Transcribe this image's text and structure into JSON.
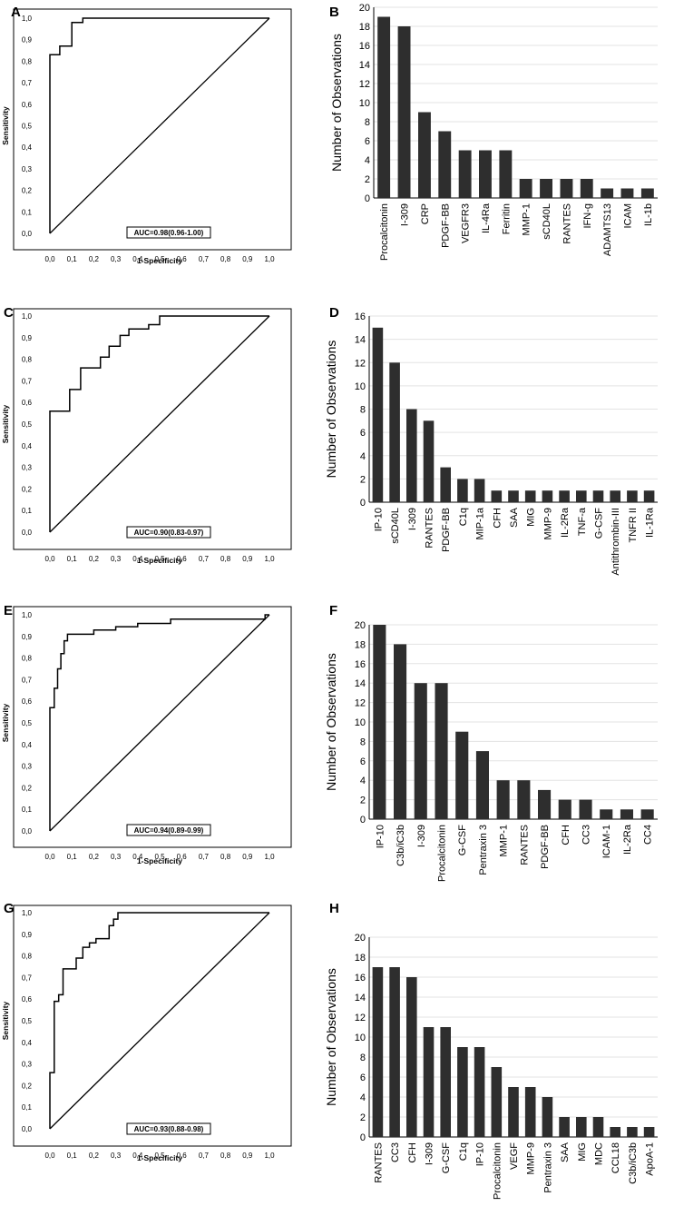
{
  "chart_data": [
    {
      "panel": "A",
      "type": "line",
      "title": "",
      "xlabel": "1-Specificity",
      "ylabel": "Sensitivity",
      "xlim": [
        0,
        1
      ],
      "ylim": [
        0,
        1
      ],
      "ticks": [
        "0,0",
        "0,1",
        "0,2",
        "0,3",
        "0,4",
        "0,5",
        "0,6",
        "0,7",
        "0,8",
        "0,9",
        "1,0"
      ],
      "auc_label": "AUC=0.98(0.96-1.00)",
      "curve": [
        [
          0,
          0
        ],
        [
          0,
          0.83
        ],
        [
          0.045,
          0.83
        ],
        [
          0.045,
          0.87
        ],
        [
          0.1,
          0.87
        ],
        [
          0.1,
          0.98
        ],
        [
          0.15,
          0.98
        ],
        [
          0.15,
          1.0
        ],
        [
          1.0,
          1.0
        ]
      ],
      "diagonal": [
        [
          0,
          0
        ],
        [
          1,
          1
        ]
      ]
    },
    {
      "panel": "B",
      "type": "bar",
      "title": "",
      "xlabel": "",
      "ylabel": "Number of Observations",
      "ylim": [
        0,
        20
      ],
      "yticks": [
        0,
        2,
        4,
        6,
        8,
        10,
        12,
        14,
        16,
        18,
        20
      ],
      "categories": [
        "Procalcitonin",
        "I-309",
        "CRP",
        "PDGF-BB",
        "VEGFR3",
        "IL-4Ra",
        "Ferritin",
        "MMP-1",
        "sCD40L",
        "RANTES",
        "IFN-g",
        "ADAMTS13",
        "ICAM",
        "IL-1b"
      ],
      "values": [
        19,
        18,
        9,
        7,
        5,
        5,
        5,
        2,
        2,
        2,
        2,
        1,
        1,
        1
      ]
    },
    {
      "panel": "C",
      "type": "line",
      "title": "",
      "xlabel": "1-Specificity",
      "ylabel": "Sensitivity",
      "xlim": [
        0,
        1
      ],
      "ylim": [
        0,
        1
      ],
      "ticks": [
        "0,0",
        "0,1",
        "0,2",
        "0,3",
        "0,4",
        "0,5",
        "0,6",
        "0,7",
        "0,8",
        "0,9",
        "1,0"
      ],
      "auc_label": "AUC=0.90(0.83-0.97)",
      "curve": [
        [
          0,
          0
        ],
        [
          0,
          0.56
        ],
        [
          0.09,
          0.56
        ],
        [
          0.09,
          0.66
        ],
        [
          0.14,
          0.66
        ],
        [
          0.14,
          0.76
        ],
        [
          0.23,
          0.76
        ],
        [
          0.23,
          0.81
        ],
        [
          0.27,
          0.81
        ],
        [
          0.27,
          0.86
        ],
        [
          0.32,
          0.86
        ],
        [
          0.32,
          0.91
        ],
        [
          0.36,
          0.91
        ],
        [
          0.36,
          0.94
        ],
        [
          0.45,
          0.94
        ],
        [
          0.45,
          0.96
        ],
        [
          0.5,
          0.96
        ],
        [
          0.5,
          1.0
        ],
        [
          1.0,
          1.0
        ]
      ],
      "diagonal": [
        [
          0,
          0
        ],
        [
          1,
          1
        ]
      ]
    },
    {
      "panel": "D",
      "type": "bar",
      "title": "",
      "xlabel": "",
      "ylabel": "Number of Observations",
      "ylim": [
        0,
        16
      ],
      "yticks": [
        0,
        2,
        4,
        6,
        8,
        10,
        12,
        14,
        16
      ],
      "categories": [
        "IP-10",
        "sCD40L",
        "I-309",
        "RANTES",
        "PDGF-BB",
        "C1q",
        "MIP-1a",
        "CFH",
        "SAA",
        "MIG",
        "MMP-9",
        "IL-2Ra",
        "TNF-a",
        "G-CSF",
        "Antithrombin-III",
        "TNFR II",
        "IL-1Ra"
      ],
      "values": [
        15,
        12,
        8,
        7,
        3,
        2,
        2,
        1,
        1,
        1,
        1,
        1,
        1,
        1,
        1,
        1,
        1
      ]
    },
    {
      "panel": "E",
      "type": "line",
      "title": "",
      "xlabel": "1-Specificity",
      "ylabel": "Sensitivity",
      "xlim": [
        0,
        1
      ],
      "ylim": [
        0,
        1
      ],
      "ticks": [
        "0,0",
        "0,1",
        "0,2",
        "0,3",
        "0,4",
        "0,5",
        "0,6",
        "0,7",
        "0,8",
        "0,9",
        "1,0"
      ],
      "auc_label": "AUC=0.94(0.89-0.99)",
      "curve": [
        [
          0,
          0
        ],
        [
          0,
          0.57
        ],
        [
          0.02,
          0.57
        ],
        [
          0.02,
          0.66
        ],
        [
          0.035,
          0.66
        ],
        [
          0.035,
          0.75
        ],
        [
          0.05,
          0.75
        ],
        [
          0.05,
          0.82
        ],
        [
          0.065,
          0.82
        ],
        [
          0.065,
          0.88
        ],
        [
          0.08,
          0.88
        ],
        [
          0.08,
          0.91
        ],
        [
          0.2,
          0.91
        ],
        [
          0.2,
          0.93
        ],
        [
          0.3,
          0.93
        ],
        [
          0.3,
          0.945
        ],
        [
          0.4,
          0.945
        ],
        [
          0.4,
          0.96
        ],
        [
          0.55,
          0.96
        ],
        [
          0.55,
          0.98
        ],
        [
          0.98,
          0.98
        ],
        [
          0.98,
          1.0
        ],
        [
          1.0,
          1.0
        ]
      ],
      "diagonal": [
        [
          0,
          0
        ],
        [
          1,
          1
        ]
      ]
    },
    {
      "panel": "F",
      "type": "bar",
      "title": "",
      "xlabel": "",
      "ylabel": "Number of Observations",
      "ylim": [
        0,
        20
      ],
      "yticks": [
        0,
        2,
        4,
        6,
        8,
        10,
        12,
        14,
        16,
        18,
        20
      ],
      "categories": [
        "IP-10",
        "C3b/iC3b",
        "I-309",
        "Procalcitonin",
        "G-CSF",
        "Pentraxin 3",
        "MMP-1",
        "RANTES",
        "PDGF-BB",
        "CFH",
        "CC3",
        "ICAM-1",
        "IL-2Ra",
        "CC4"
      ],
      "values": [
        20,
        18,
        14,
        14,
        9,
        7,
        4,
        4,
        3,
        2,
        2,
        1,
        1,
        1
      ]
    },
    {
      "panel": "G",
      "type": "line",
      "title": "",
      "xlabel": "1-Specificity",
      "ylabel": "Sensitivity",
      "xlim": [
        0,
        1
      ],
      "ylim": [
        0,
        1
      ],
      "ticks": [
        "0,0",
        "0,1",
        "0,2",
        "0,3",
        "0,4",
        "0,5",
        "0,6",
        "0,7",
        "0,8",
        "0,9",
        "1,0"
      ],
      "auc_label": "AUC=0.93(0.88-0.98)",
      "curve": [
        [
          0,
          0
        ],
        [
          0,
          0.26
        ],
        [
          0.02,
          0.26
        ],
        [
          0.02,
          0.59
        ],
        [
          0.04,
          0.59
        ],
        [
          0.04,
          0.62
        ],
        [
          0.06,
          0.62
        ],
        [
          0.06,
          0.74
        ],
        [
          0.12,
          0.74
        ],
        [
          0.12,
          0.79
        ],
        [
          0.15,
          0.79
        ],
        [
          0.15,
          0.84
        ],
        [
          0.18,
          0.84
        ],
        [
          0.18,
          0.86
        ],
        [
          0.21,
          0.86
        ],
        [
          0.21,
          0.88
        ],
        [
          0.27,
          0.88
        ],
        [
          0.27,
          0.94
        ],
        [
          0.29,
          0.94
        ],
        [
          0.29,
          0.97
        ],
        [
          0.31,
          0.97
        ],
        [
          0.31,
          1.0
        ],
        [
          1.0,
          1.0
        ]
      ],
      "diagonal": [
        [
          0,
          0
        ],
        [
          1,
          1
        ]
      ]
    },
    {
      "panel": "H",
      "type": "bar",
      "title": "",
      "xlabel": "",
      "ylabel": "Number of Observations",
      "ylim": [
        0,
        20
      ],
      "yticks": [
        0,
        2,
        4,
        6,
        8,
        10,
        12,
        14,
        16,
        18,
        20
      ],
      "categories": [
        "RANTES",
        "CC3",
        "CFH",
        "I-309",
        "G-CSF",
        "C1q",
        "IP-10",
        "Procalcitonin",
        "VEGF",
        "MMP-9",
        "Pentraxin 3",
        "SAA",
        "MIG",
        "MDC",
        "CCL18",
        "C3b/iC3b",
        "ApoA-1"
      ],
      "values": [
        17,
        17,
        16,
        11,
        11,
        9,
        9,
        7,
        5,
        5,
        4,
        2,
        2,
        2,
        1,
        1,
        1
      ]
    }
  ]
}
